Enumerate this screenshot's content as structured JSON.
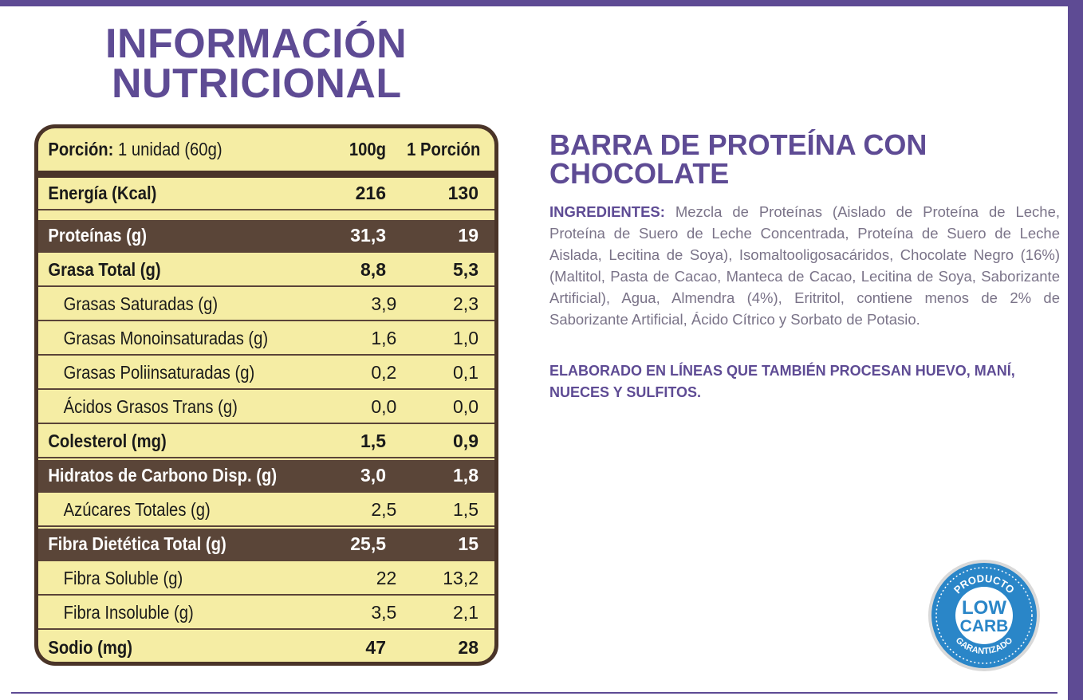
{
  "title": {
    "line1": "INFORMACIÓN",
    "line2": "NUTRICIONAL"
  },
  "table": {
    "portion_label": "Porción:",
    "portion_value": "1 unidad (60g)",
    "col_100g": "100g",
    "col_portion": "1 Porción",
    "rows": [
      {
        "name": "Energía (Kcal)",
        "v100": "216",
        "vpor": "130"
      },
      {
        "name": "Proteínas (g)",
        "v100": "31,3",
        "vpor": "19"
      },
      {
        "name": "Grasa Total (g)",
        "v100": "8,8",
        "vpor": "5,3"
      },
      {
        "name": "Grasas Saturadas (g)",
        "v100": "3,9",
        "vpor": "2,3"
      },
      {
        "name": "Grasas Monoinsaturadas (g)",
        "v100": "1,6",
        "vpor": "1,0"
      },
      {
        "name": "Grasas Poliinsaturadas (g)",
        "v100": "0,2",
        "vpor": "0,1"
      },
      {
        "name": "Ácidos Grasos Trans (g)",
        "v100": "0,0",
        "vpor": "0,0"
      },
      {
        "name": "Colesterol (mg)",
        "v100": "1,5",
        "vpor": "0,9"
      },
      {
        "name": "Hidratos de Carbono Disp. (g)",
        "v100": "3,0",
        "vpor": "1,8"
      },
      {
        "name": "Azúcares Totales (g)",
        "v100": "2,5",
        "vpor": "1,5"
      },
      {
        "name": "Fibra Dietética Total (g)",
        "v100": "25,5",
        "vpor": "15"
      },
      {
        "name": "Fibra Soluble (g)",
        "v100": "22",
        "vpor": "13,2"
      },
      {
        "name": "Fibra Insoluble (g)",
        "v100": "3,5",
        "vpor": "2,1"
      },
      {
        "name": "Sodio (mg)",
        "v100": "47",
        "vpor": "28"
      }
    ]
  },
  "product": {
    "title": "BARRA DE PROTEÍNA CON CHOCOLATE",
    "ingredients_label": "INGREDIENTES:",
    "ingredients_text": "Mezcla de Proteínas (Aislado de Proteína de Leche, Proteína de Suero de Leche Concentrada, Proteína de Suero de Leche Aislada, Lecitina de Soya), Isomaltooligosacáridos, Chocolate Negro (16%) (Maltitol, Pasta de Cacao, Manteca de Cacao, Lecitina de Soya, Saborizante Artificial), Agua, Almendra (4%), Eritritol, contiene menos de 2% de Saborizante Artificial, Ácido Cítrico y Sorbato de Potasio.",
    "allergen": "ELABORADO EN LÍNEAS QUE TAMBIÉN PROCESAN HUEVO, MANÍ, NUECES Y SULFITOS."
  },
  "badge": {
    "top": "PRODUCTO",
    "line1": "LOW",
    "line2": "CARB",
    "bottom": "GARANTIZADO"
  },
  "colors": {
    "purple": "#5e4b94",
    "table_bg": "#f5eda4",
    "table_dark": "#5a4538",
    "badge_blue": "#2a86c8"
  }
}
